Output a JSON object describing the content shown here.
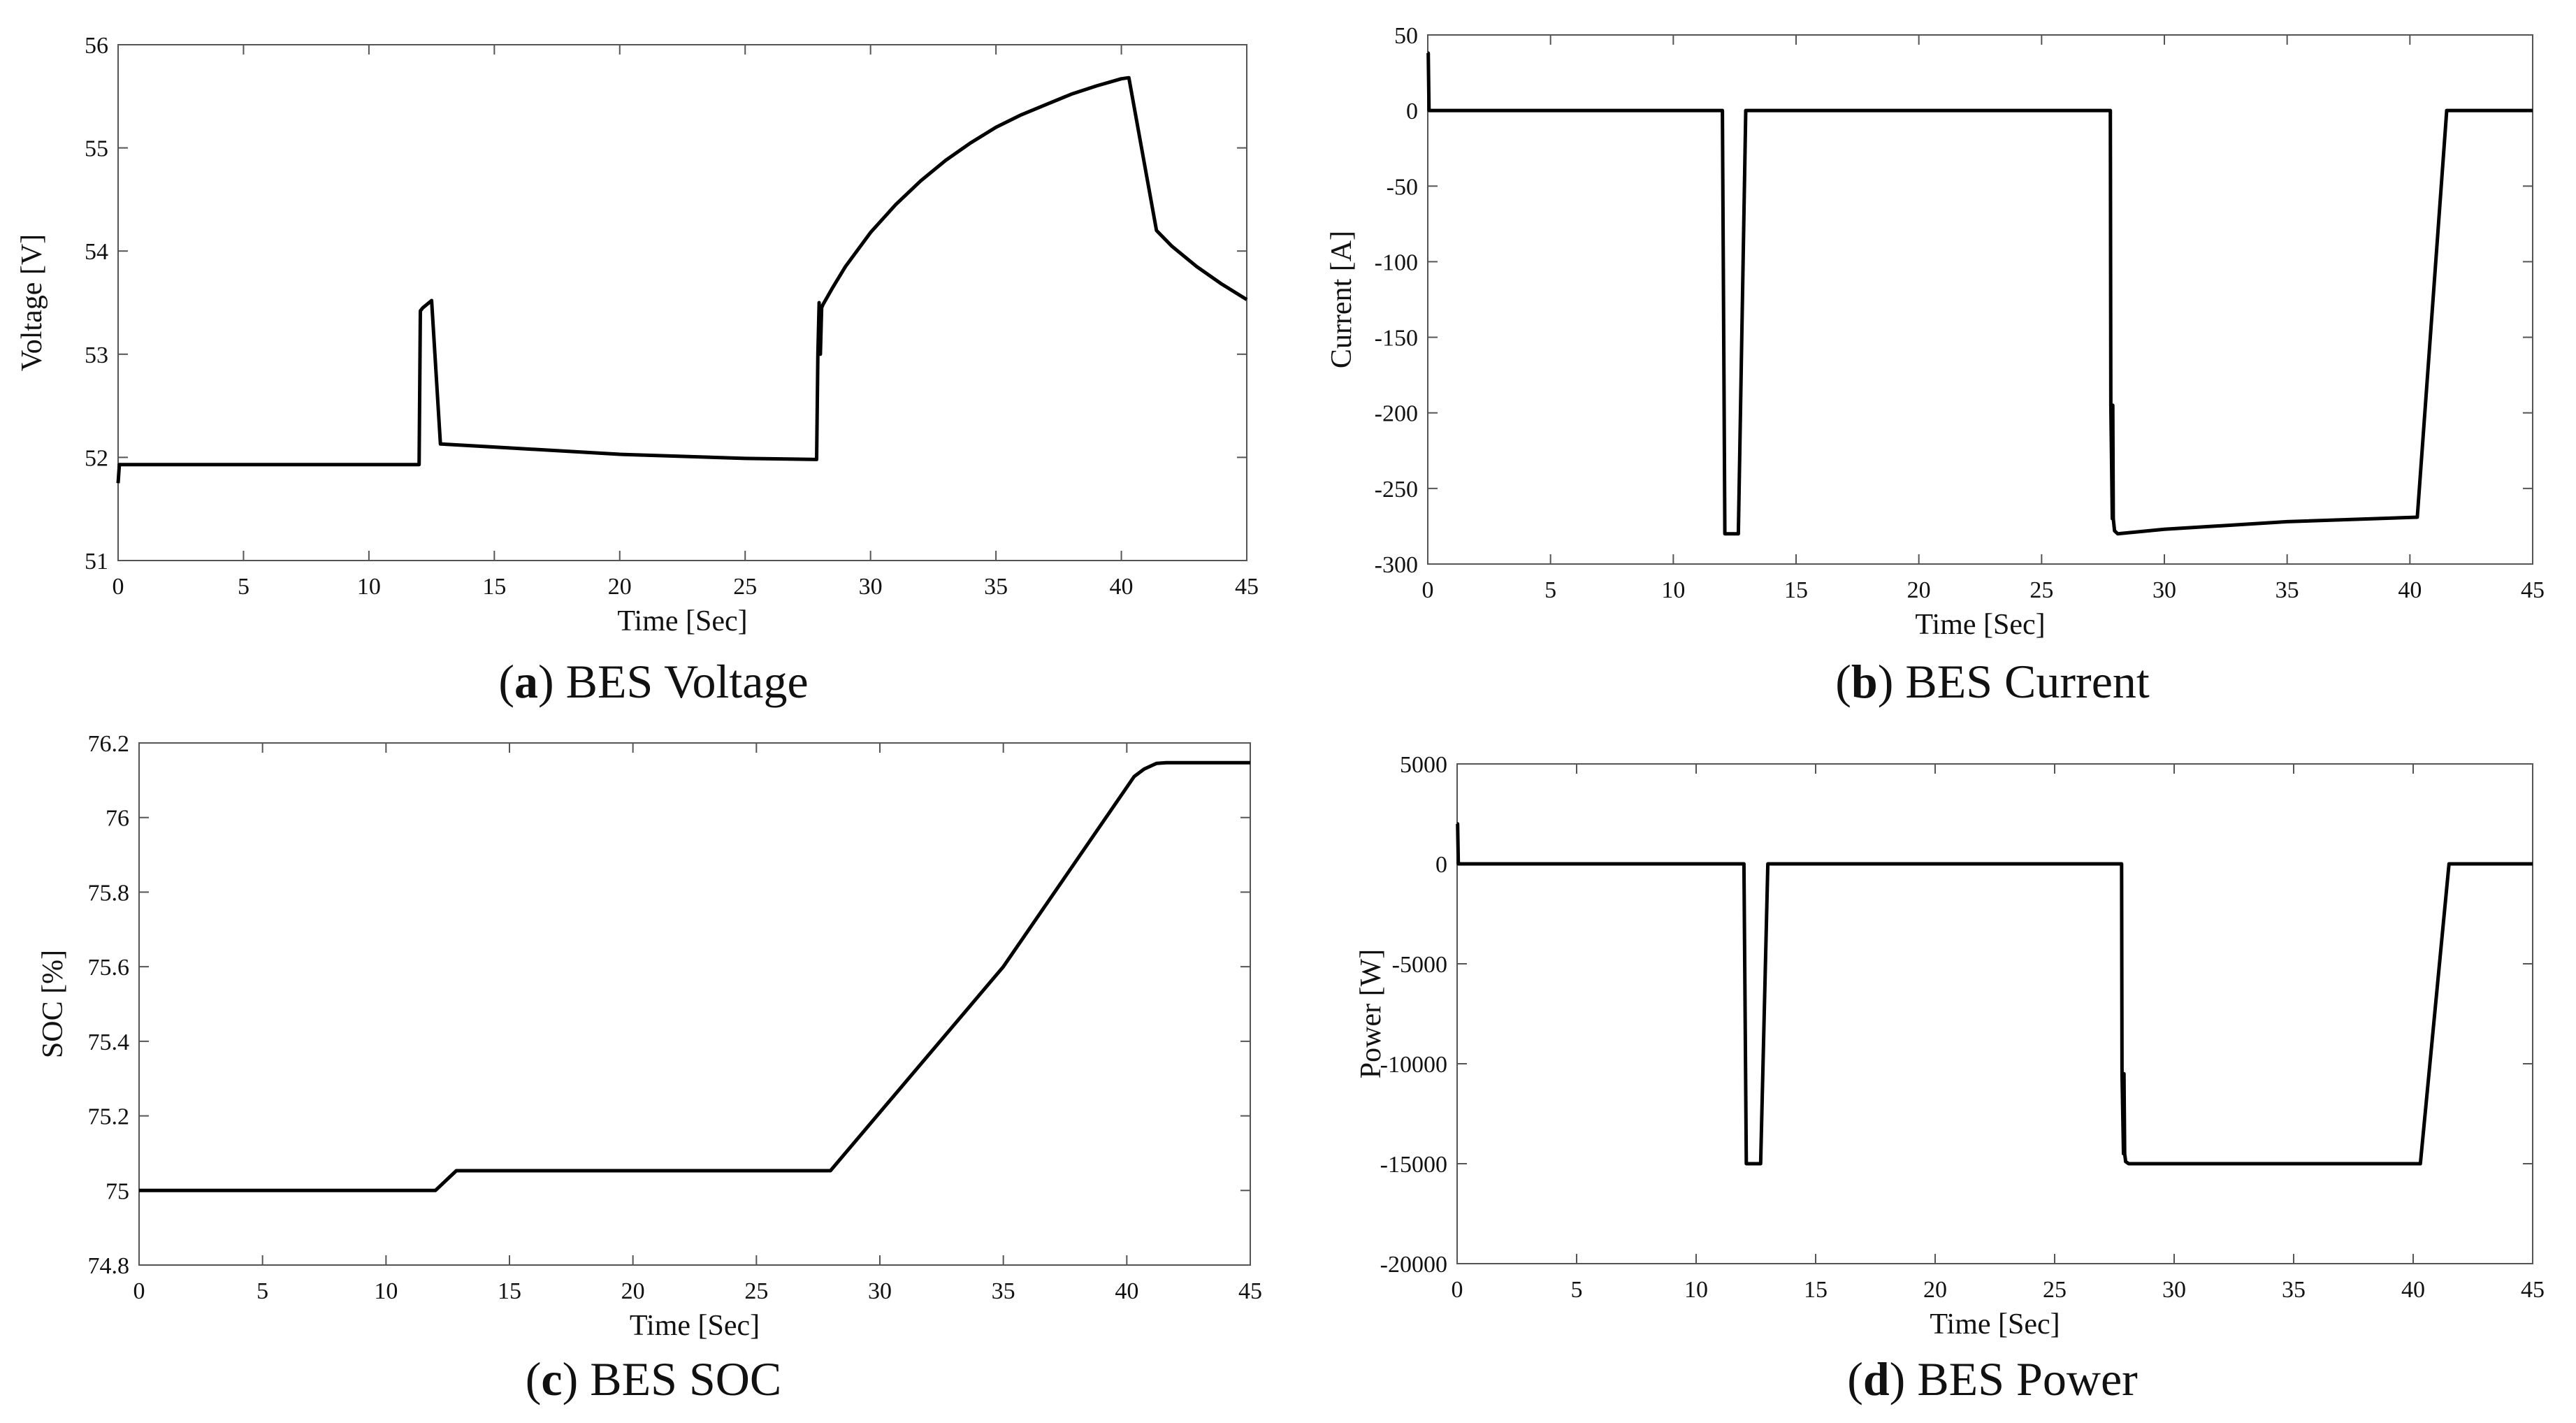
{
  "chart_data": [
    {
      "id": "a",
      "type": "line",
      "caption_letter": "a",
      "caption_text": " BES Voltage",
      "xlabel": "Time [Sec]",
      "ylabel": "Voltage [V]",
      "xlim": [
        0,
        45
      ],
      "ylim": [
        51,
        56
      ],
      "xticks": [
        0,
        5,
        10,
        15,
        20,
        25,
        30,
        35,
        40,
        45
      ],
      "yticks": [
        51,
        52,
        53,
        54,
        55,
        56
      ],
      "grid": false,
      "series": [
        {
          "color": "#000000",
          "x": [
            0,
            0.05,
            0.1,
            5,
            10,
            12.0,
            12.05,
            12.15,
            12.5,
            12.85,
            15,
            20,
            25,
            27.85,
            27.9,
            27.95,
            28.0,
            28.05,
            28.1,
            28.5,
            29,
            30,
            31,
            32,
            33,
            34,
            35,
            36,
            37,
            38,
            39,
            40,
            40.3,
            41.4,
            42,
            43,
            44,
            45
          ],
          "y": [
            51.75,
            51.93,
            51.93,
            51.93,
            51.93,
            51.93,
            53.42,
            53.45,
            53.52,
            52.13,
            52.1,
            52.03,
            51.99,
            51.98,
            53.0,
            53.5,
            53.0,
            53.45,
            53.48,
            53.65,
            53.85,
            54.18,
            54.45,
            54.68,
            54.88,
            55.05,
            55.2,
            55.32,
            55.42,
            55.52,
            55.6,
            55.67,
            55.68,
            54.2,
            54.05,
            53.85,
            53.68,
            53.53
          ]
        }
      ]
    },
    {
      "id": "b",
      "type": "line",
      "caption_letter": "b",
      "caption_text": " BES Current",
      "xlabel": "Time [Sec]",
      "ylabel": "Current [A]",
      "xlim": [
        0,
        45
      ],
      "ylim": [
        -300,
        50
      ],
      "xticks": [
        0,
        5,
        10,
        15,
        20,
        25,
        30,
        35,
        40,
        45
      ],
      "yticks": [
        -300,
        -250,
        -200,
        -150,
        -100,
        -50,
        0,
        50
      ],
      "grid": false,
      "series": [
        {
          "color": "#000000",
          "x": [
            0,
            0.02,
            0.05,
            5,
            10,
            12.0,
            12.1,
            12.15,
            12.55,
            12.65,
            12.95,
            15,
            20,
            25,
            27.8,
            27.82,
            27.88,
            27.9,
            27.92,
            27.97,
            28.1,
            30,
            35,
            40.3,
            41.5,
            42,
            45
          ],
          "y": [
            38,
            38,
            0,
            0,
            0,
            0,
            -280,
            -280,
            -280,
            -280,
            0,
            0,
            0,
            0,
            0,
            -195,
            -270,
            -195,
            -270,
            -278,
            -280,
            -277,
            -272,
            -269,
            0,
            0,
            0
          ]
        }
      ]
    },
    {
      "id": "c",
      "type": "line",
      "caption_letter": "c",
      "caption_text": " BES SOC",
      "xlabel": "Time [Sec]",
      "ylabel": "SOC [%]",
      "xlim": [
        0,
        45
      ],
      "ylim": [
        74.8,
        76.2
      ],
      "xticks": [
        0,
        5,
        10,
        15,
        20,
        25,
        30,
        35,
        40,
        45
      ],
      "yticks": [
        74.8,
        75,
        75.2,
        75.4,
        75.6,
        75.8,
        76,
        76.2
      ],
      "grid": false,
      "series": [
        {
          "color": "#000000",
          "x": [
            0,
            5,
            10,
            12,
            12.85,
            15,
            20,
            25,
            28,
            35,
            40.3,
            40.7,
            41.2,
            41.6,
            42,
            45
          ],
          "y": [
            75.0,
            75.0,
            75.0,
            75.0,
            75.053,
            75.053,
            75.053,
            75.053,
            75.053,
            75.6,
            76.11,
            76.13,
            76.145,
            76.147,
            76.147,
            76.147
          ]
        }
      ]
    },
    {
      "id": "d",
      "type": "line",
      "caption_letter": "d",
      "caption_text": " BES Power",
      "xlabel": "Time [Sec]",
      "ylabel": "Power [W]",
      "xlim": [
        0,
        45
      ],
      "ylim": [
        -20000,
        5000
      ],
      "xticks": [
        0,
        5,
        10,
        15,
        20,
        25,
        30,
        35,
        40,
        45
      ],
      "yticks": [
        -20000,
        -15000,
        -10000,
        -5000,
        0,
        5000
      ],
      "grid": false,
      "series": [
        {
          "color": "#000000",
          "x": [
            0,
            0.02,
            0.05,
            5,
            10,
            12.0,
            12.1,
            12.2,
            12.6,
            12.7,
            13.0,
            15,
            20,
            25,
            27.8,
            27.82,
            27.88,
            27.9,
            27.93,
            27.97,
            28.1,
            30,
            35,
            40.3,
            41.5,
            42,
            45
          ],
          "y": [
            2000,
            2000,
            0,
            0,
            0,
            0,
            -15000,
            -15000,
            -15000,
            -15000,
            0,
            0,
            0,
            0,
            0,
            -10500,
            -14500,
            -10500,
            -14500,
            -14900,
            -15000,
            -15000,
            -15000,
            -15000,
            0,
            0,
            0
          ]
        }
      ]
    }
  ]
}
